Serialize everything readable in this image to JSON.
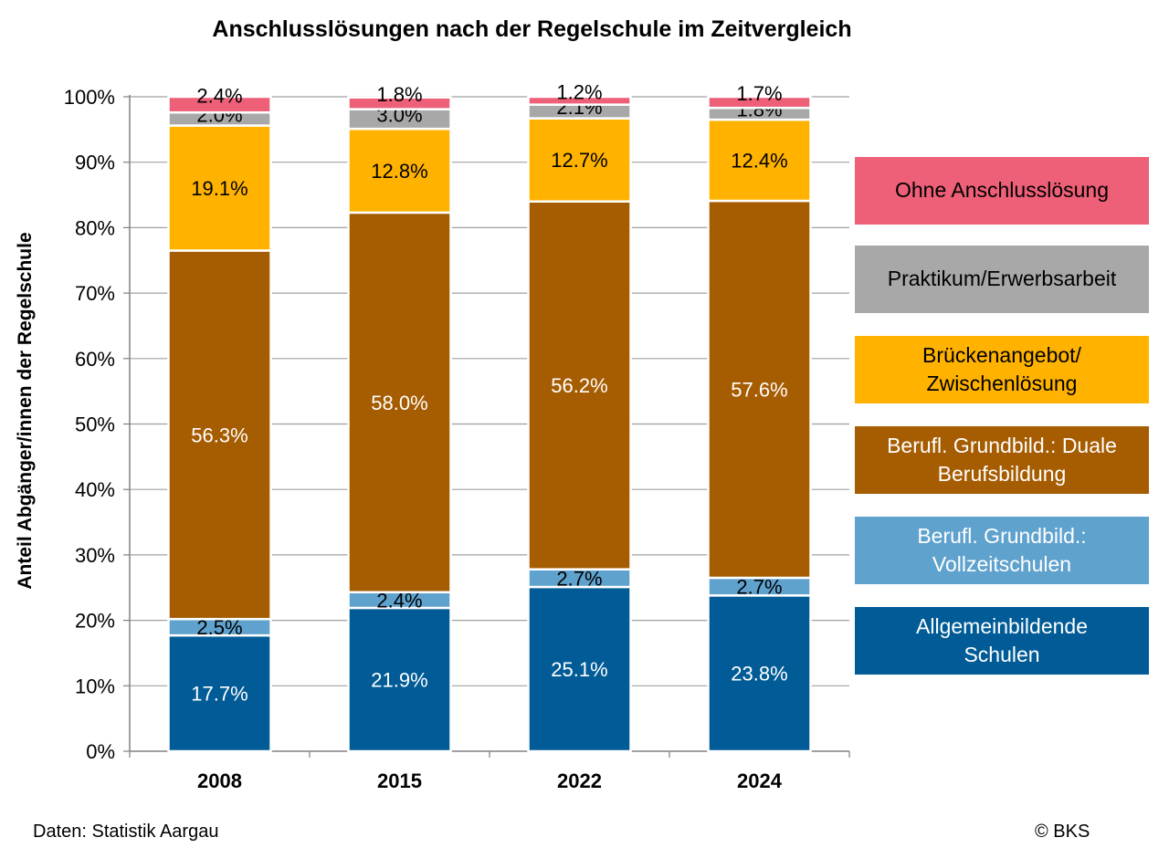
{
  "chart_data": {
    "type": "bar",
    "stacked": true,
    "title": "Anschlusslösungen nach der Regelschule im Zeitvergleich",
    "ylabel": "Anteil Abgänger/innen der Regelschule",
    "xlabel": "",
    "ylim": [
      0,
      100
    ],
    "yticks": [
      "0%",
      "10%",
      "20%",
      "30%",
      "40%",
      "50%",
      "60%",
      "70%",
      "80%",
      "90%",
      "100%"
    ],
    "categories": [
      "2008",
      "2015",
      "2022",
      "2024"
    ],
    "legend_position": "right",
    "grid": true,
    "series": [
      {
        "name": "Allgemeinbildende Schulen",
        "color": "#005B96",
        "label_color": "#ffffff",
        "values": [
          17.7,
          21.9,
          25.1,
          23.8
        ],
        "labels": [
          "17.7%",
          "21.9%",
          "25.1%",
          "23.8%"
        ]
      },
      {
        "name": "Berufl. Grundbild.: Vollzeitschulen",
        "color": "#5FA2CE",
        "label_color": "#000000",
        "values": [
          2.5,
          2.4,
          2.7,
          2.7
        ],
        "labels": [
          "2.5%",
          "2.4%",
          "2.7%",
          "2.7%"
        ]
      },
      {
        "name": "Berufl. Grundbild.: Duale Berufsbildung",
        "color": "#A65C00",
        "label_color": "#ffffff",
        "values": [
          56.3,
          58.0,
          56.2,
          57.6
        ],
        "labels": [
          "56.3%",
          "58.0%",
          "56.2%",
          "57.6%"
        ]
      },
      {
        "name": "Brückenangebot/ Zwischenlösung",
        "color": "#FFB300",
        "label_color": "#000000",
        "values": [
          19.1,
          12.8,
          12.7,
          12.4
        ],
        "labels": [
          "19.1%",
          "12.8%",
          "12.7%",
          "12.4%"
        ]
      },
      {
        "name": "Praktikum/Erwerbsarbeit",
        "color": "#A8A8A8",
        "label_color": "#000000",
        "values": [
          2.0,
          3.0,
          2.1,
          1.8
        ],
        "labels": [
          "2.0%",
          "3.0%",
          "2.1%",
          "1.8%"
        ]
      },
      {
        "name": "Ohne Anschlusslösung",
        "color": "#EE5F78",
        "label_color": "#000000",
        "values": [
          2.4,
          1.8,
          1.2,
          1.7
        ],
        "labels": [
          "2.4%",
          "1.8%",
          "1.2%",
          "1.7%"
        ]
      }
    ]
  },
  "legend": [
    {
      "text": "Ohne Anschlusslösung",
      "color": "#EE5F78",
      "text_color": "#000000"
    },
    {
      "text": "Praktikum/Erwerbsarbeit",
      "color": "#A8A8A8",
      "text_color": "#000000"
    },
    {
      "text": "Brückenangebot/\nZwischenlösung",
      "color": "#FFB300",
      "text_color": "#000000"
    },
    {
      "text": "Berufl. Grundbild.: Duale\nBerufsbildung",
      "color": "#A65C00",
      "text_color": "#ffffff"
    },
    {
      "text": "Berufl. Grundbild.:\nVollzeitschulen",
      "color": "#5FA2CE",
      "text_color": "#ffffff"
    },
    {
      "text": "Allgemeinbildende\nSchulen",
      "color": "#005B96",
      "text_color": "#ffffff"
    }
  ],
  "footer": {
    "source": "Daten: Statistik Aargau",
    "copyright": "© BKS"
  }
}
